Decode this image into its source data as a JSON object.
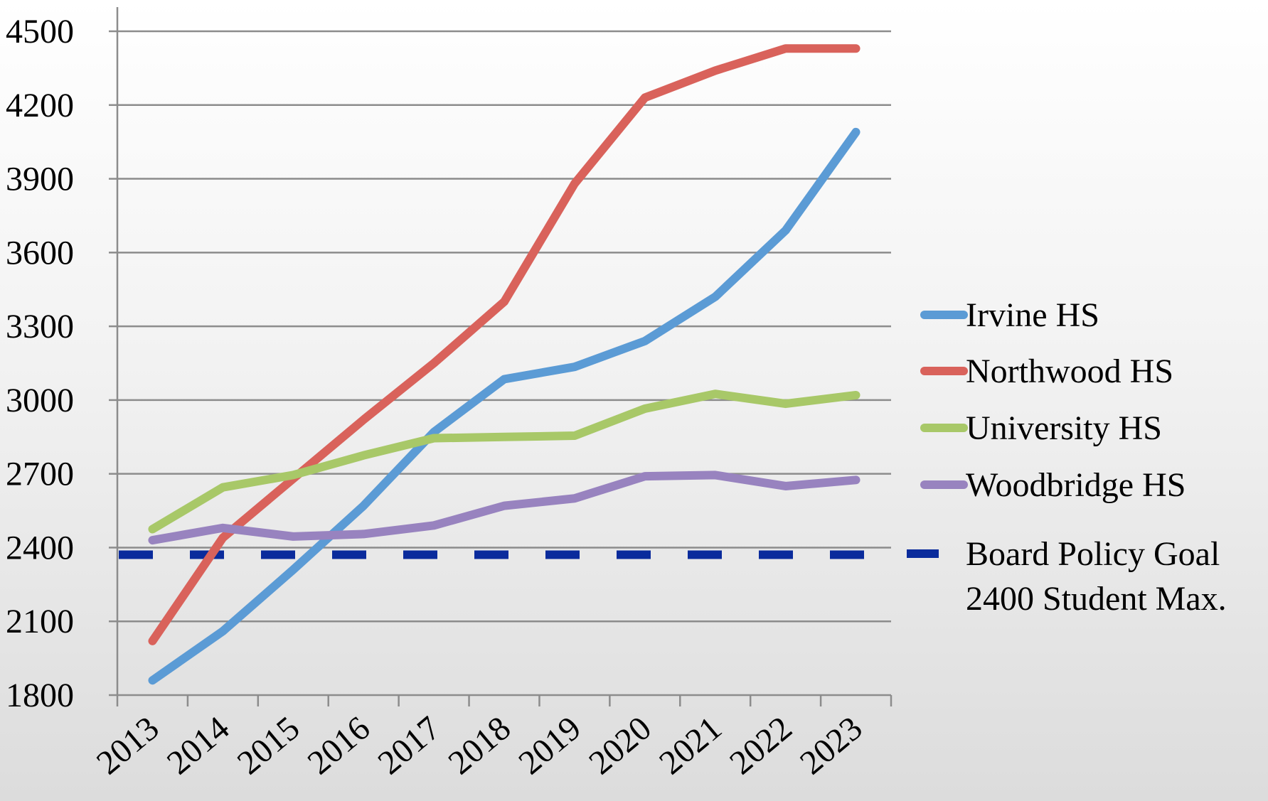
{
  "chart_data": {
    "type": "line",
    "title": "",
    "xlabel": "",
    "ylabel": "",
    "x": [
      "2013",
      "2014",
      "2015",
      "2016",
      "2017",
      "2018",
      "2019",
      "2020",
      "2021",
      "2022",
      "2023"
    ],
    "ylim": [
      1800,
      4500
    ],
    "yticks": [
      "1800",
      "2100",
      "2400",
      "2700",
      "3000",
      "3300",
      "3600",
      "3900",
      "4200",
      "4500"
    ],
    "grid": true,
    "legend_position": "right",
    "series": [
      {
        "name": "Irvine HS",
        "color": "#5b9bd5",
        "values": [
          1860,
          2060,
          2310,
          2570,
          2870,
          3085,
          3135,
          3240,
          3420,
          3690,
          4090
        ]
      },
      {
        "name": "Northwood HS",
        "color": "#d9625b",
        "values": [
          2020,
          2440,
          2680,
          2920,
          3150,
          3400,
          3880,
          4230,
          4340,
          4430,
          4430
        ]
      },
      {
        "name": "University HS",
        "color": "#a8c868",
        "values": [
          2475,
          2645,
          2695,
          2775,
          2845,
          2850,
          2855,
          2965,
          3025,
          2985,
          3020
        ]
      },
      {
        "name": "Woodbridge HS",
        "color": "#9883bf",
        "values": [
          2430,
          2480,
          2445,
          2455,
          2490,
          2570,
          2600,
          2690,
          2695,
          2650,
          2675
        ]
      }
    ],
    "reference_line": {
      "name_line1": "Board Policy Goal",
      "name_line2": "2400 Student Max.",
      "value": 2400,
      "color": "#0a2b9c",
      "style": "dashed"
    }
  }
}
